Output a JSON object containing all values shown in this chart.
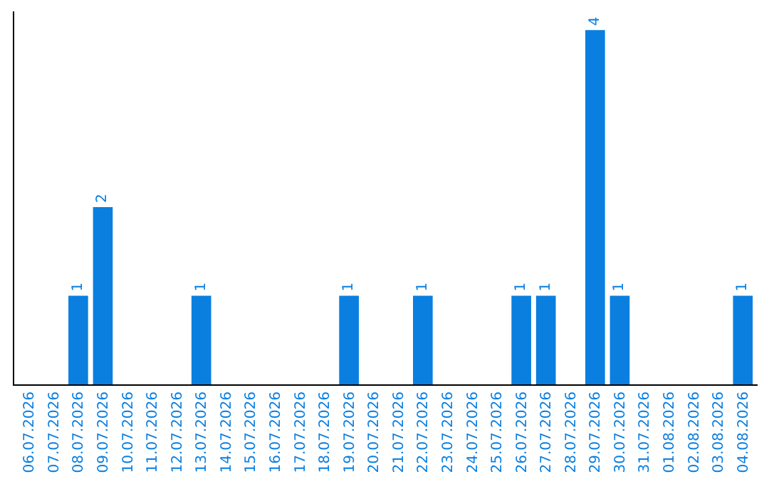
{
  "chart_data": {
    "type": "bar",
    "categories": [
      "06.07.2026",
      "07.07.2026",
      "08.07.2026",
      "09.07.2026",
      "10.07.2026",
      "11.07.2026",
      "12.07.2026",
      "13.07.2026",
      "14.07.2026",
      "15.07.2026",
      "16.07.2026",
      "17.07.2026",
      "18.07.2026",
      "19.07.2026",
      "20.07.2026",
      "21.07.2026",
      "22.07.2026",
      "23.07.2026",
      "24.07.2026",
      "25.07.2026",
      "26.07.2026",
      "27.07.2026",
      "28.07.2026",
      "29.07.2026",
      "30.07.2026",
      "31.07.2026",
      "01.08.2026",
      "02.08.2026",
      "03.08.2026",
      "04.08.2026"
    ],
    "values": [
      0,
      0,
      1,
      2,
      0,
      0,
      0,
      1,
      0,
      0,
      0,
      0,
      0,
      1,
      0,
      0,
      1,
      0,
      0,
      0,
      1,
      1,
      0,
      4,
      1,
      0,
      0,
      0,
      0,
      1
    ],
    "value_labels": [
      null,
      null,
      "1",
      "2",
      null,
      null,
      null,
      "1",
      null,
      null,
      null,
      null,
      null,
      "1",
      null,
      null,
      "1",
      null,
      null,
      null,
      "1",
      "1",
      null,
      "4",
      "1",
      null,
      null,
      null,
      null,
      "1"
    ],
    "color": "#0a7fe0",
    "tick_labels": "x"
  }
}
